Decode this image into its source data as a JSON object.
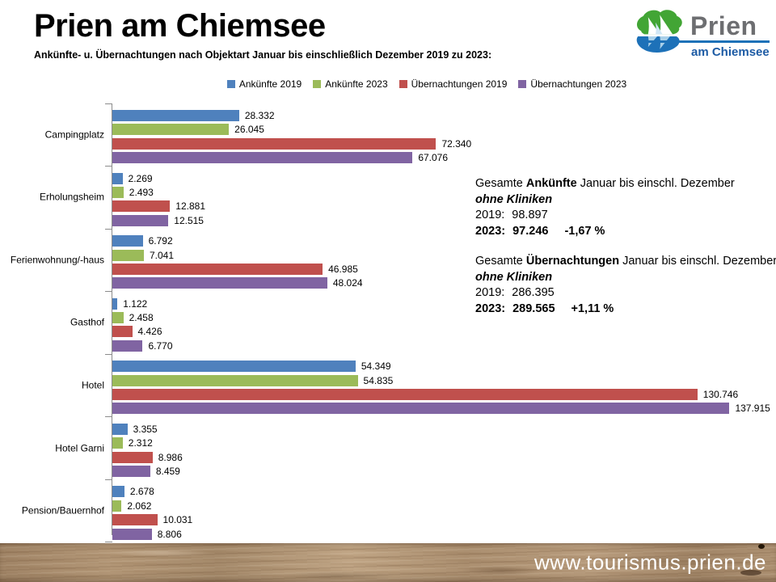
{
  "header": {
    "title": "Prien am Chiemsee",
    "subtitle": "Ankünfte- u. Übernachtungen nach Objektart Januar bis einschließlich Dezember 2019 zu 2023:"
  },
  "logo": {
    "wordmark": "Prien",
    "tagline": "am Chiemsee",
    "colors": {
      "green": "#42a535",
      "blue": "#1d71b8",
      "gray": "#6d6e71",
      "light_blue": "#a9d0e9"
    }
  },
  "chart_data": {
    "type": "bar",
    "orientation": "horizontal",
    "title": "",
    "xlabel": "",
    "ylabel": "",
    "xlim": [
      0,
      140000
    ],
    "grid": false,
    "legend_position": "top",
    "value_label_format": "german thousands separator (dot)",
    "categories": [
      "Campingplatz",
      "Erholungsheim",
      "Ferienwohnung/-haus",
      "Gasthof",
      "Hotel",
      "Hotel Garni",
      "Pension/Bauernhof"
    ],
    "series": [
      {
        "name": "Ankünfte 2019",
        "color": "#4F81BD",
        "values": [
          28332,
          2269,
          6792,
          1122,
          54349,
          3355,
          2678
        ],
        "labels": [
          "28.332",
          "2.269",
          "6.792",
          "1.122",
          "54.349",
          "3.355",
          "2.678"
        ]
      },
      {
        "name": "Ankünfte 2023",
        "color": "#9BBB59",
        "values": [
          26045,
          2493,
          7041,
          2458,
          54835,
          2312,
          2062
        ],
        "labels": [
          "26.045",
          "2.493",
          "7.041",
          "2.458",
          "54.835",
          "2.312",
          "2.062"
        ]
      },
      {
        "name": "Übernachtungen 2019",
        "color": "#C0504D",
        "values": [
          72340,
          12881,
          46985,
          4426,
          130746,
          8986,
          10031
        ],
        "labels": [
          "72.340",
          "12.881",
          "46.985",
          "4.426",
          "130.746",
          "8.986",
          "10.031"
        ]
      },
      {
        "name": "Übernachtungen 2023",
        "color": "#8064A2",
        "values": [
          67076,
          12515,
          48024,
          6770,
          137915,
          8459,
          8806
        ],
        "labels": [
          "67.076",
          "12.515",
          "48.024",
          "6.770",
          "137.915",
          "8.459",
          "8.806"
        ]
      }
    ]
  },
  "annotations": {
    "arrivals": {
      "lead": "Gesamte",
      "keyword": "Ankünfte",
      "tail": "Januar bis einschl. Dezember",
      "exclusion": "ohne Kliniken",
      "y2019_label": "2019:",
      "y2019_value": "98.897",
      "y2023_label": "2023:",
      "y2023_value": "97.246",
      "change": "-1,67 %"
    },
    "overnights": {
      "lead": "Gesamte",
      "keyword": "Übernachtungen",
      "tail": "Januar bis einschl. Dezember",
      "exclusion": "ohne Kliniken",
      "y2019_label": "2019:",
      "y2019_value": "286.395",
      "y2023_label": "2023:",
      "y2023_value": "289.565",
      "change": "+1,11 %"
    }
  },
  "footer": {
    "url": "www.tourismus.prien.de"
  }
}
